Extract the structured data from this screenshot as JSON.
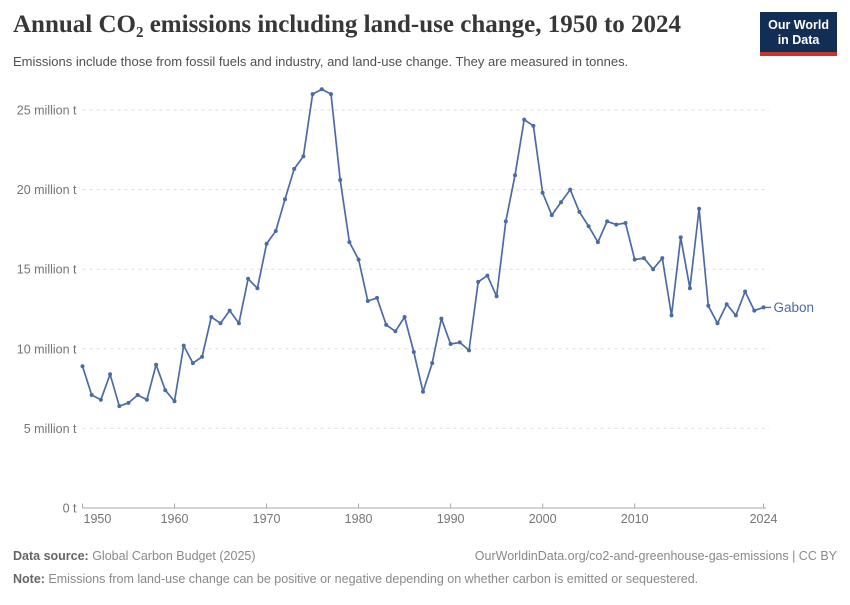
{
  "logo": {
    "line1": "Our World",
    "line2": "in Data"
  },
  "chart_data": {
    "type": "line",
    "title": "Annual CO₂ emissions including land-use change, 1950 to 2024",
    "subtitle": "Emissions include those from fossil fuels and industry, and land-use change. They are measured in tonnes.",
    "entity_label": "Gabon",
    "xlim": [
      1950,
      2024
    ],
    "ylim": [
      0,
      26.5
    ],
    "grid": "horizontal-dashed",
    "legend_position": "line-end-label",
    "x_ticks": [
      1950,
      1960,
      1970,
      1980,
      1990,
      2000,
      2010,
      2024
    ],
    "y_ticks": [
      {
        "value": 0,
        "label": "0 t"
      },
      {
        "value": 5,
        "label": "5 million t"
      },
      {
        "value": 10,
        "label": "10 million t"
      },
      {
        "value": 15,
        "label": "15 million t"
      },
      {
        "value": 20,
        "label": "20 million t"
      },
      {
        "value": 25,
        "label": "25 million t"
      }
    ],
    "years": [
      1950,
      1951,
      1952,
      1953,
      1954,
      1955,
      1956,
      1957,
      1958,
      1959,
      1960,
      1961,
      1962,
      1963,
      1964,
      1965,
      1966,
      1967,
      1968,
      1969,
      1970,
      1971,
      1972,
      1973,
      1974,
      1975,
      1976,
      1977,
      1978,
      1979,
      1980,
      1981,
      1982,
      1983,
      1984,
      1985,
      1986,
      1987,
      1988,
      1989,
      1990,
      1991,
      1992,
      1993,
      1994,
      1995,
      1996,
      1997,
      1998,
      1999,
      2000,
      2001,
      2002,
      2003,
      2004,
      2005,
      2006,
      2007,
      2008,
      2009,
      2010,
      2011,
      2012,
      2013,
      2014,
      2015,
      2016,
      2017,
      2018,
      2019,
      2020,
      2021,
      2022,
      2023,
      2024
    ],
    "series": [
      {
        "name": "Gabon",
        "unit": "million tonnes",
        "values": [
          8.9,
          7.1,
          6.8,
          8.4,
          6.4,
          6.6,
          7.1,
          6.8,
          9.0,
          7.4,
          6.7,
          10.2,
          9.1,
          9.5,
          12.0,
          11.6,
          12.4,
          11.6,
          14.4,
          13.8,
          16.6,
          17.4,
          19.4,
          21.3,
          22.1,
          26.0,
          26.3,
          26.0,
          20.6,
          16.7,
          15.6,
          13.0,
          13.2,
          11.5,
          11.1,
          12.0,
          9.8,
          7.3,
          9.1,
          11.9,
          10.3,
          10.4,
          9.9,
          14.2,
          14.6,
          13.3,
          18.0,
          20.9,
          24.4,
          24.0,
          19.8,
          18.4,
          19.2,
          20.0,
          18.6,
          17.7,
          16.7,
          18.0,
          17.8,
          17.9,
          15.6,
          15.7,
          15.0,
          15.7,
          12.1,
          17.0,
          13.8,
          18.8,
          12.7,
          11.6,
          12.8,
          12.1,
          13.6,
          12.4,
          12.6
        ]
      }
    ]
  },
  "colors": {
    "line": "#4c6ba4",
    "entity_label": "#4c6ba4",
    "grid": "#dcdcdc",
    "axis": "#a8a8a8",
    "tick_label": "#757575"
  },
  "footer": {
    "source_label": "Data source:",
    "source_value": " Global Carbon Budget (2025)",
    "link": "OurWorldinData.org/co2-and-greenhouse-gas-emissions | CC BY",
    "note_label": "Note:",
    "note_value": " Emissions from land-use change can be positive or negative depending on whether carbon is emitted or sequestered."
  }
}
